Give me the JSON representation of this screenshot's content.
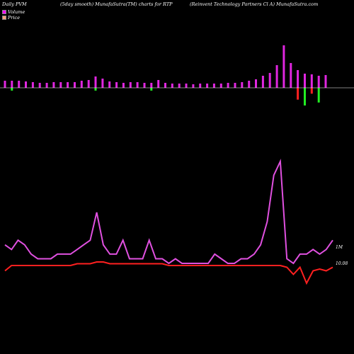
{
  "header": {
    "left": "Daily PVM",
    "mid1": "(5day smooth) MunafaSutra(TM) charts for RTP",
    "right": "(Reinvent Technology Partners Cl A) MunafaSutra.com"
  },
  "legend": {
    "volume_label": "Volume",
    "price_label": "Price",
    "volume_color": "#ff00ff",
    "price_color": "#ffa07a"
  },
  "colors": {
    "background": "#000000",
    "bar_up": "#e026e0",
    "bar_down": "#22ee22",
    "bar_negative": "#ff2020",
    "volume_line": "#e050e0",
    "price_line": "#ff2020",
    "zero_line": "#ffffff"
  },
  "chart_data": {
    "type": "bar",
    "series": [
      {
        "name": "Volume",
        "values": [
          10,
          10,
          10,
          9,
          8,
          7,
          7,
          8,
          8,
          8,
          8,
          10,
          11,
          16,
          13,
          9,
          8,
          7,
          8,
          8,
          7,
          7,
          11,
          7,
          6,
          6,
          6,
          5,
          6,
          6,
          6,
          6,
          7,
          7,
          8,
          10,
          12,
          17,
          21,
          32,
          60,
          35,
          25,
          20,
          19,
          17,
          18
        ],
        "bar_direction": [
          "up",
          "down",
          "up",
          "up",
          "up",
          "up",
          "up",
          "up",
          "up",
          "up",
          "up",
          "up",
          "up",
          "down",
          "up",
          "up",
          "up",
          "up",
          "up",
          "up",
          "up",
          "down",
          "up",
          "up",
          "up",
          "up",
          "up",
          "up",
          "up",
          "up",
          "up",
          "up",
          "up",
          "up",
          "up",
          "up",
          "up",
          "up",
          "up",
          "up",
          "up",
          "up",
          "up",
          "up",
          "up",
          "up",
          "up"
        ],
        "negative": [
          0,
          0,
          0,
          0,
          0,
          0,
          0,
          0,
          0,
          0,
          0,
          0,
          0,
          0,
          0,
          0,
          0,
          0,
          0,
          0,
          0,
          0,
          0,
          0,
          0,
          0,
          0,
          0,
          0,
          0,
          0,
          0,
          0,
          0,
          0,
          0,
          0,
          0,
          0,
          0,
          0,
          0,
          -20,
          -30,
          -10,
          -25,
          0
        ]
      },
      {
        "name": "Volume",
        "values": [
          7,
          6,
          8,
          7,
          5,
          4,
          4,
          4,
          5,
          5,
          5,
          6,
          7,
          8,
          14,
          7,
          5,
          5,
          8,
          4,
          4,
          4,
          8,
          4,
          4,
          3,
          4,
          3,
          3,
          3,
          3,
          3,
          5,
          4,
          3,
          3,
          4,
          4,
          5,
          7,
          12,
          22,
          25,
          4,
          3,
          5,
          5,
          6,
          5,
          6,
          8
        ]
      },
      {
        "name": "Price",
        "values": [
          9.97,
          10.0,
          10.0,
          10.0,
          10.0,
          10.0,
          10.0,
          10.0,
          10.0,
          10.0,
          10.0,
          10.01,
          10.01,
          10.01,
          10.02,
          10.02,
          10.01,
          10.01,
          10.01,
          10.01,
          10.01,
          10.01,
          10.01,
          10.01,
          10.01,
          10.0,
          10.0,
          10.0,
          10.0,
          10.0,
          10.0,
          10.0,
          10.0,
          10.0,
          10.0,
          10.0,
          10.0,
          10.0,
          10.0,
          10.0,
          10.0,
          10.0,
          10.0,
          9.99,
          9.95,
          9.99,
          9.9,
          9.97,
          9.98,
          9.97,
          9.99
        ]
      }
    ],
    "annotations": [
      "1M",
      "10.08"
    ]
  }
}
